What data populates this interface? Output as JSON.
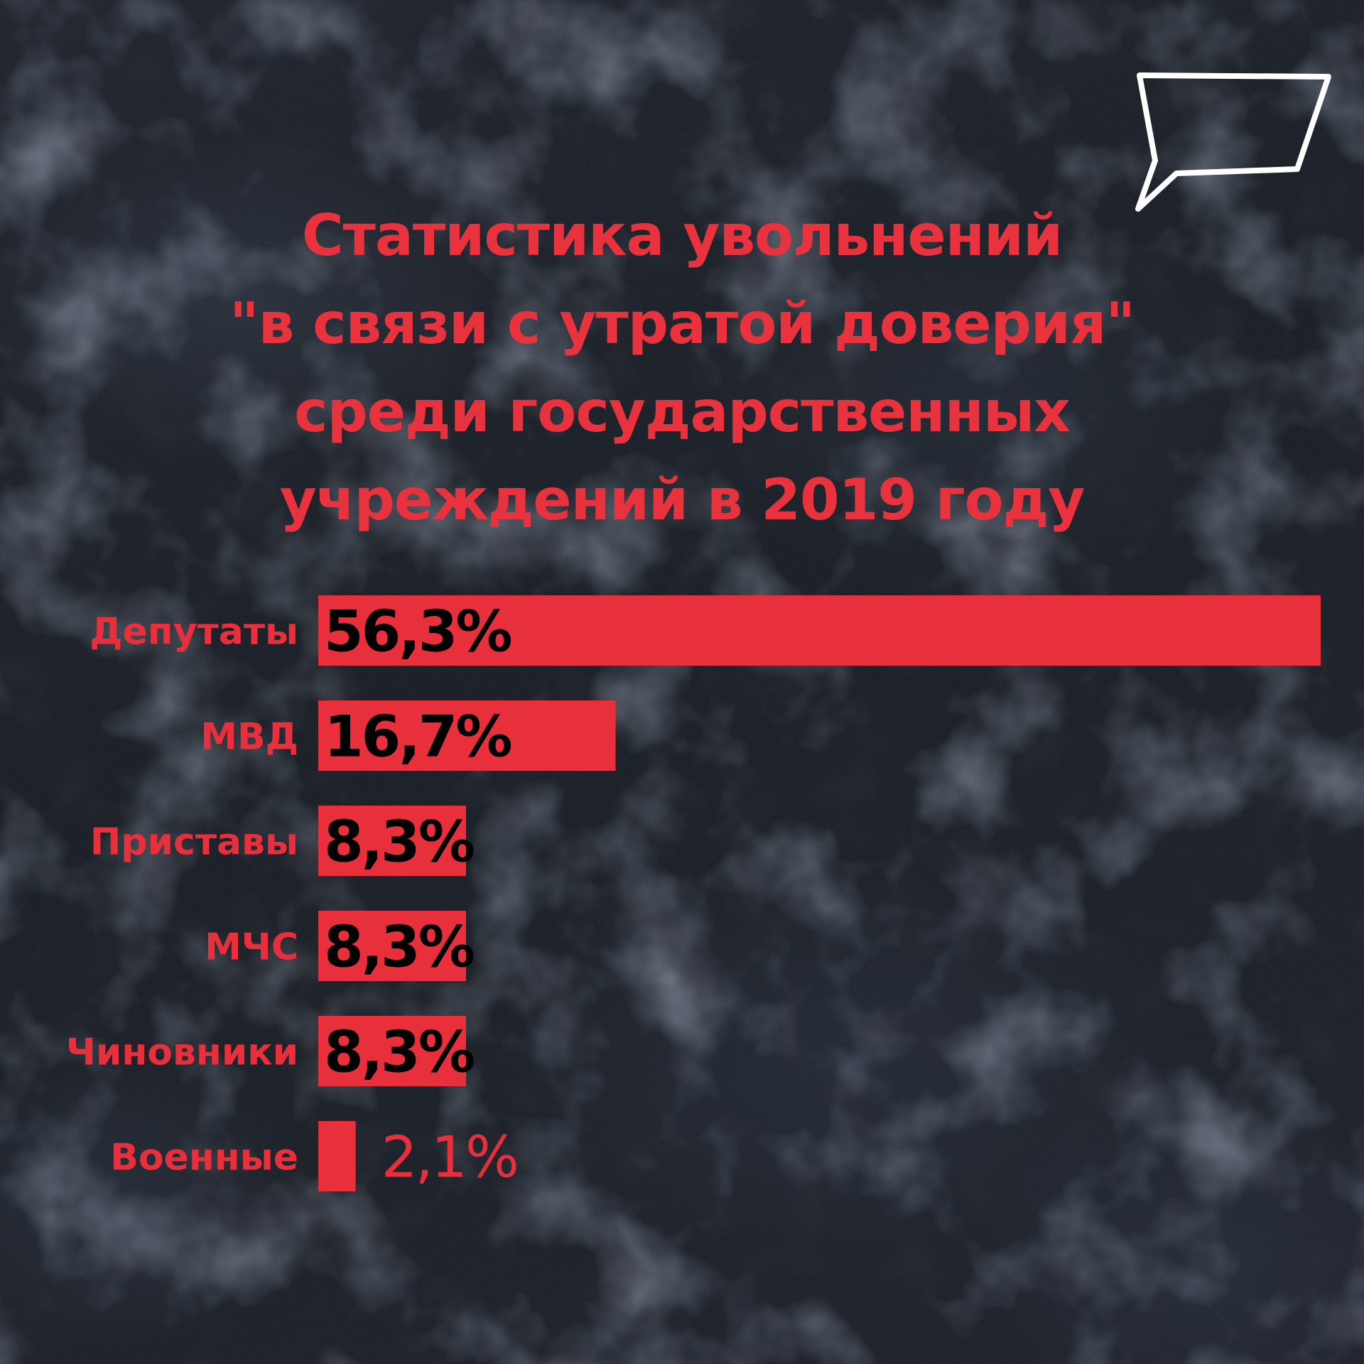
{
  "title": {
    "lines": [
      "Статистика увольнений",
      "\"в связи с утратой доверия\"",
      "среди государственных",
      "учреждений в 2019 году"
    ]
  },
  "icons": {
    "corner": "speech-bubble-icon"
  },
  "colors": {
    "accent": "#e8303c",
    "bar_value_text": "#000000",
    "background": "#1a1e26",
    "icon_stroke": "#ffffff"
  },
  "chart_data": {
    "type": "bar",
    "orientation": "horizontal",
    "title": "Статистика увольнений \"в связи с утратой доверия\" среди государственных учреждений в 2019 году",
    "categories": [
      "Депутаты",
      "МВД",
      "Приставы",
      "МЧС",
      "Чиновники",
      "Военные"
    ],
    "values": [
      56.3,
      16.7,
      8.3,
      8.3,
      8.3,
      2.1
    ],
    "value_labels": [
      "56,3%",
      "16,7%",
      "8,3%",
      "8,3%",
      "8,3%",
      "2,1%"
    ],
    "unit": "%",
    "xlim": [
      0,
      56.3
    ],
    "grid": false,
    "legend": "none"
  }
}
